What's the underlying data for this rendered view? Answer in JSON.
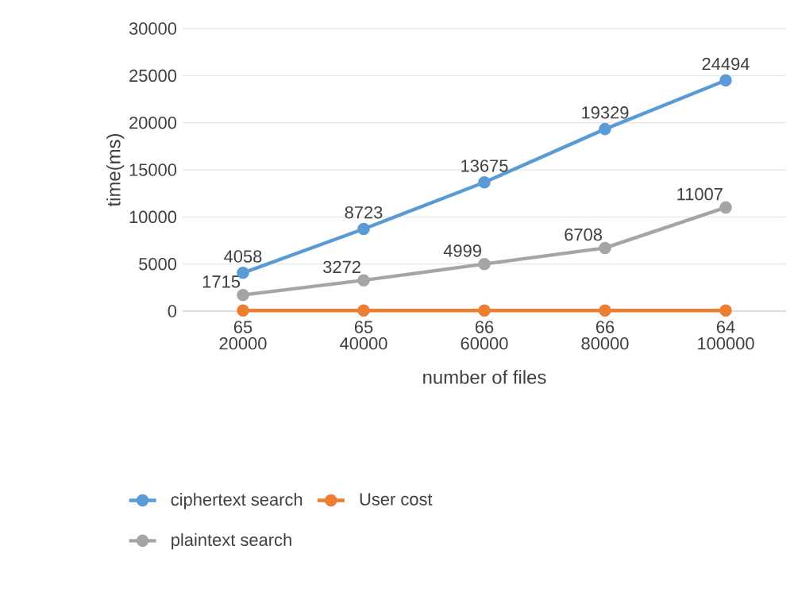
{
  "chart_data": {
    "type": "line",
    "xlabel": "number of files",
    "ylabel": "time(ms)",
    "categories": [
      "20000",
      "40000",
      "60000",
      "80000",
      "100000"
    ],
    "series": [
      {
        "name": "ciphertext search",
        "color": "#5b9bd5",
        "values": [
          4058,
          8723,
          13675,
          19329,
          24494
        ]
      },
      {
        "name": "User cost",
        "color": "#ed7d31",
        "values": [
          65,
          65,
          66,
          66,
          64
        ]
      },
      {
        "name": "plaintext search",
        "color": "#a5a5a5",
        "values": [
          1715,
          3272,
          4999,
          6708,
          11007
        ]
      }
    ],
    "ylim": [
      0,
      30000
    ],
    "yticks": [
      0,
      5000,
      10000,
      15000,
      20000,
      25000,
      30000
    ],
    "grid": "y",
    "legend": "bottom",
    "marker": "circle",
    "line_style": "solid",
    "data_labels": true
  }
}
